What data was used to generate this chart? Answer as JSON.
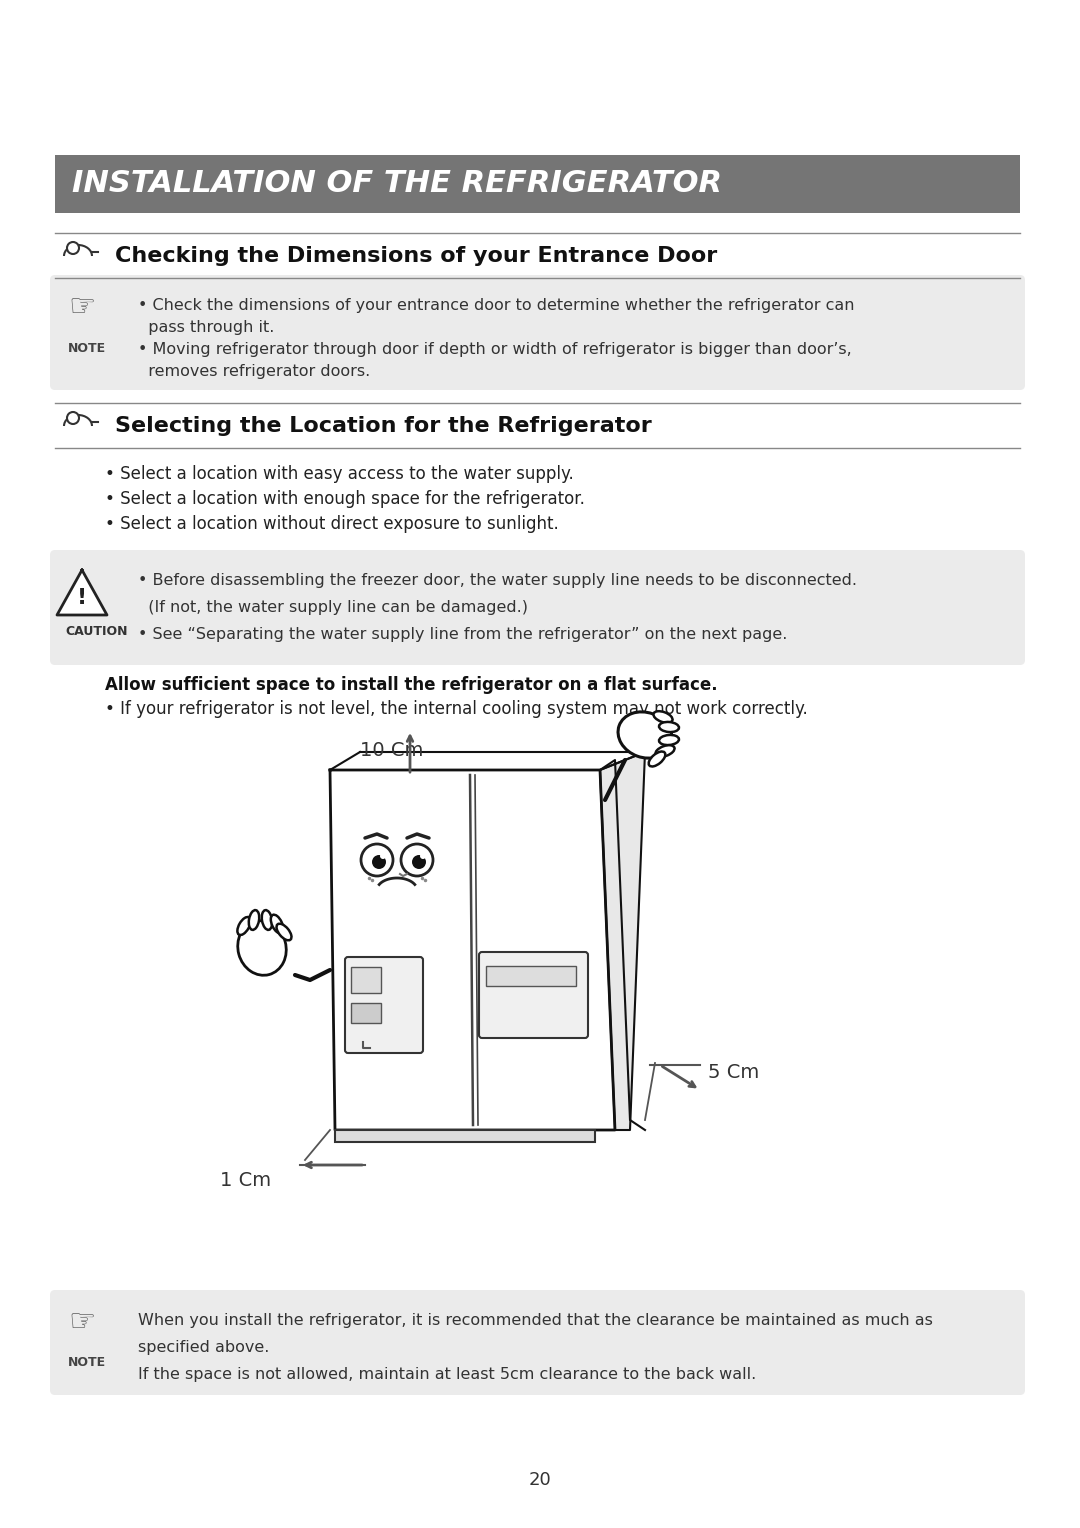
{
  "bg_color": "#ffffff",
  "title_text": "INSTALLATION OF THE REFRIGERATOR",
  "title_bg": "#757575",
  "title_fg": "#ffffff",
  "section1_title": "Checking the Dimensions of your Entrance Door",
  "section2_title": "Selecting the Location for the Refrigerator",
  "note1_lines": [
    "• Check the dimensions of your entrance door to determine whether the refrigerator can",
    "  pass through it.",
    "• Moving refrigerator through door if depth or width of refrigerator is bigger than door’s,",
    "  removes refrigerator doors."
  ],
  "note1_bg": "#ebebeb",
  "section2_bullets": [
    "• Select a location with easy access to the water supply.",
    "• Select a location with enough space for the refrigerator.",
    "• Select a location without direct exposure to sunlight."
  ],
  "caution_lines": [
    "• Before disassembling the freezer door, the water supply line needs to be disconnected.",
    "  (If not, the water supply line can be damaged.)",
    "• See “Separating the water supply line from the refrigerator” on the next page."
  ],
  "caution_bg": "#ebebeb",
  "flat_bold": "Allow sufficient space to install the refrigerator on a flat surface.",
  "flat_bullet": "• If your refrigerator is not level, the internal cooling system may not work correctly.",
  "note2_lines": [
    "When you install the refrigerator, it is recommended that the clearance be maintained as much as",
    "specified above.",
    "If the space is not allowed, maintain at least 5cm clearance to the back wall."
  ],
  "note2_bg": "#ebebeb",
  "page_number": "20",
  "dim_top": "10 Cm",
  "dim_right": "5 Cm",
  "dim_bottom": "1 Cm"
}
